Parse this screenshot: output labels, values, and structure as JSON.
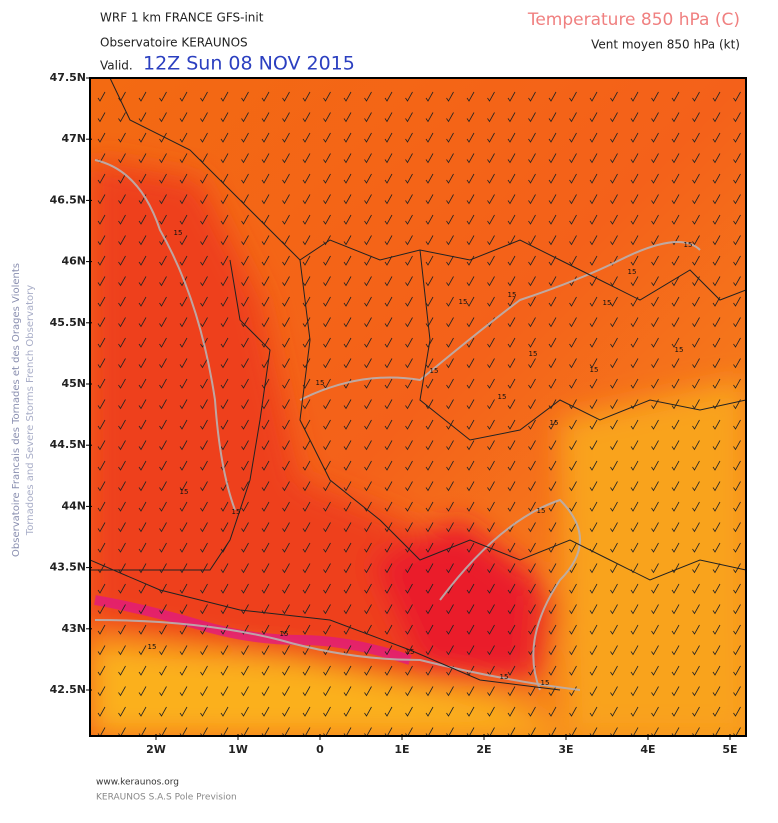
{
  "header": {
    "model": "WRF 1 km FRANCE  GFS-init",
    "source": "Observatoire KERAUNOS",
    "valid_prefix": "Valid.",
    "valid_time": "12Z Sun 08 NOV 2015",
    "field": "Temperature 850 hPa (C)",
    "wind": "Vent moyen 850 hPa (kt)"
  },
  "side": {
    "line1": "Observatoire Francais des Tornades et des Orages Violents",
    "line2": "Tornadoes and Severe Storms French Observatory"
  },
  "map": {
    "lat_labels": [
      "47.5N",
      "47N",
      "46.5N",
      "46N",
      "45.5N",
      "45N",
      "44.5N",
      "44N",
      "43.5N",
      "43N",
      "42.5N"
    ],
    "lon_labels": [
      "2W",
      "1W",
      "0",
      "1E",
      "2E",
      "3E",
      "4E",
      "5E"
    ],
    "contour_labels": [
      "15",
      "15",
      "15",
      "15",
      "15",
      "15",
      "15",
      "15",
      "15",
      "15",
      "15",
      "15",
      "15",
      "15",
      "15",
      "15",
      "15",
      "15",
      "15",
      "15",
      "15"
    ]
  },
  "footer": {
    "url": "www.keraunos.org",
    "company": "KERAUNOS S.A.S Pole Prevision"
  }
}
